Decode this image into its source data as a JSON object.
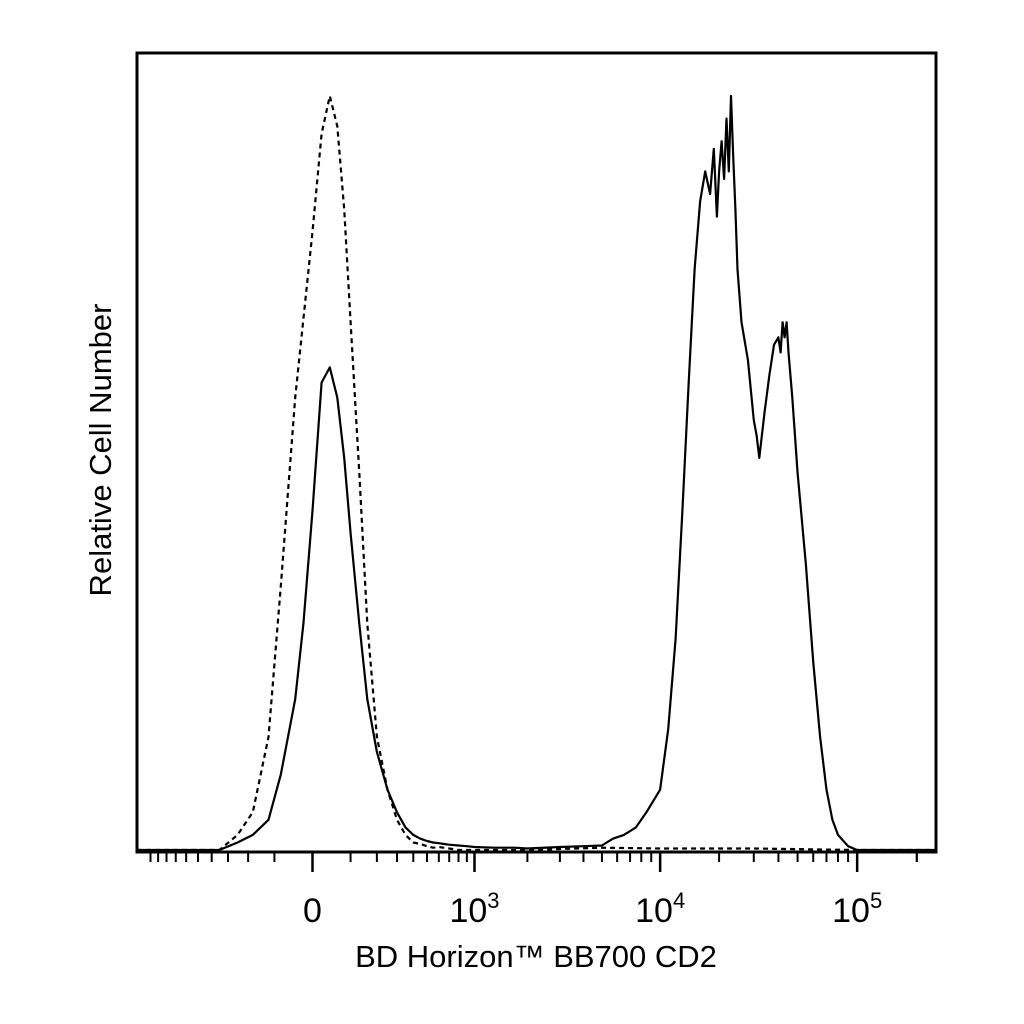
{
  "chart_data": {
    "type": "line",
    "title": "",
    "xlabel": "BD Horizon™ BB700 CD2",
    "ylabel": "Relative Cell Number",
    "x_scale": "biexponential",
    "x_ticks": [
      {
        "value": 0,
        "base": "0",
        "exp": ""
      },
      {
        "value": 1000,
        "base": "10",
        "exp": "3"
      },
      {
        "value": 10000,
        "base": "10",
        "exp": "4"
      },
      {
        "value": 100000,
        "base": "10",
        "exp": "5"
      }
    ],
    "xlim": [
      -1200,
      250000
    ],
    "ylim": [
      0,
      1
    ],
    "grid": false,
    "legend": "none",
    "line_color": "#000000",
    "series": [
      {
        "style": "dashed",
        "x": [
          -1200,
          -600,
          -350,
          -250,
          -180,
          -120,
          -80,
          -40,
          0,
          20,
          40,
          60,
          80,
          100,
          130,
          160,
          200,
          250,
          300,
          350,
          400,
          450,
          500,
          550,
          600,
          700,
          800,
          1000,
          2000,
          5000,
          10000,
          30000,
          100000,
          250000
        ],
        "y": [
          0,
          0,
          0.0,
          0.02,
          0.05,
          0.15,
          0.35,
          0.6,
          0.82,
          0.95,
          1.0,
          0.96,
          0.85,
          0.7,
          0.5,
          0.3,
          0.15,
          0.08,
          0.04,
          0.02,
          0.01,
          0.008,
          0.005,
          0.003,
          0.004,
          0.002,
          0.0,
          0.0,
          0.0,
          0.003,
          0.002,
          0.002,
          0.0,
          0.0
        ]
      },
      {
        "style": "solid",
        "x": [
          -1200,
          -600,
          -350,
          -250,
          -180,
          -120,
          -80,
          -40,
          -20,
          0,
          20,
          40,
          60,
          80,
          100,
          130,
          160,
          200,
          250,
          300,
          350,
          400,
          450,
          500,
          550,
          600,
          650,
          700,
          800,
          900,
          1000,
          1300,
          1700,
          2000,
          3000,
          4000,
          5000,
          5700,
          6500,
          7500,
          8500,
          10000,
          11000,
          12000,
          13000,
          14000,
          15000,
          16000,
          17000,
          18000,
          18800,
          19500,
          20000,
          20600,
          21200,
          21800,
          22400,
          23000,
          23600,
          24200,
          24800,
          26000,
          28000,
          30000,
          31000,
          32000,
          33000,
          34000,
          36000,
          38000,
          40000,
          41000,
          42000,
          43000,
          44000,
          45000,
          47000,
          50000,
          55000,
          60000,
          65000,
          70000,
          75000,
          80000,
          90000,
          100000,
          250000
        ],
        "y": [
          0,
          0,
          0.0,
          0.01,
          0.02,
          0.04,
          0.1,
          0.2,
          0.3,
          0.45,
          0.62,
          0.64,
          0.6,
          0.52,
          0.42,
          0.3,
          0.2,
          0.13,
          0.08,
          0.05,
          0.03,
          0.02,
          0.015,
          0.012,
          0.01,
          0.009,
          0.008,
          0.007,
          0.006,
          0.005,
          0.004,
          0.003,
          0.003,
          0.002,
          0.004,
          0.005,
          0.006,
          0.015,
          0.02,
          0.03,
          0.05,
          0.08,
          0.16,
          0.28,
          0.45,
          0.62,
          0.77,
          0.86,
          0.9,
          0.87,
          0.93,
          0.84,
          0.9,
          0.94,
          0.89,
          0.97,
          0.9,
          1.0,
          0.92,
          0.85,
          0.77,
          0.7,
          0.65,
          0.57,
          0.55,
          0.52,
          0.55,
          0.58,
          0.63,
          0.67,
          0.68,
          0.66,
          0.7,
          0.68,
          0.7,
          0.66,
          0.6,
          0.5,
          0.38,
          0.25,
          0.15,
          0.08,
          0.04,
          0.02,
          0.005,
          0.0,
          0.0
        ]
      }
    ]
  }
}
